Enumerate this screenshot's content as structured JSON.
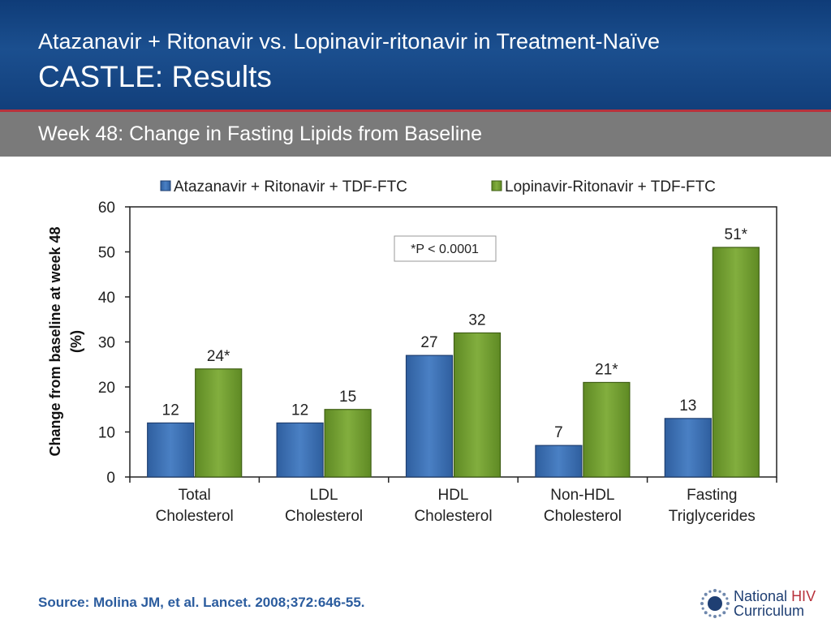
{
  "header": {
    "title_line1": "Atazanavir + Ritonavir vs. Lopinavir-ritonavir in Treatment-Naïve",
    "title_line2": "CASTLE: Results"
  },
  "subtitle": "Week 48: Change in Fasting Lipids from Baseline",
  "footer": {
    "source": "Source: Molina JM, et al. Lancet. 2008;372:646-55.",
    "logo_word1": "National",
    "logo_word2": "HIV",
    "logo_word3": "Curriculum"
  },
  "colors": {
    "series1": "#3a6db0",
    "series2": "#6e9a2e",
    "accent": "#b8323c",
    "header": "#1b4f8f"
  },
  "chart_data": {
    "type": "bar",
    "categories": [
      [
        "Total",
        "Cholesterol"
      ],
      [
        "LDL",
        "Cholesterol"
      ],
      [
        "HDL",
        "Cholesterol"
      ],
      [
        "Non-HDL",
        "Cholesterol"
      ],
      [
        "Fasting",
        "Triglycerides"
      ]
    ],
    "series": [
      {
        "name": "Atazanavir + Ritonavir + TDF-FTC",
        "values": [
          12,
          12,
          27,
          7,
          13
        ],
        "labels": [
          "12",
          "12",
          "27",
          "7",
          "13"
        ]
      },
      {
        "name": "Lopinavir-Ritonavir + TDF-FTC",
        "values": [
          24,
          15,
          32,
          21,
          51
        ],
        "labels": [
          "24*",
          "15",
          "32",
          "21*",
          "51*"
        ]
      }
    ],
    "ylabel_line1": "Change from baseline at week 48",
    "ylabel_line2": "(%)",
    "ylim": [
      0,
      60
    ],
    "yticks": [
      0,
      10,
      20,
      30,
      40,
      50,
      60
    ],
    "annotation": "*P < 0.0001",
    "legend_position": "top",
    "grid": false
  }
}
